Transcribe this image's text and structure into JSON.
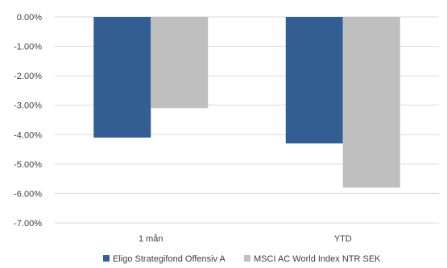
{
  "chart_data": {
    "type": "bar",
    "categories": [
      "1 mån",
      "YTD"
    ],
    "series": [
      {
        "name": "Eligo Strategifond Offensiv A",
        "values": [
          -4.1,
          -4.3
        ],
        "color": "#325e93"
      },
      {
        "name": "MSCI AC World Index NTR SEK",
        "values": [
          -3.1,
          -5.8
        ],
        "color": "#bfbfbf"
      }
    ],
    "y_ticks": [
      "0.00%",
      "-1.00%",
      "-2.00%",
      "-3.00%",
      "-4.00%",
      "-5.00%",
      "-6.00%",
      "-7.00%"
    ],
    "ylim": [
      -7,
      0
    ],
    "grid": true,
    "legend_position": "bottom"
  }
}
